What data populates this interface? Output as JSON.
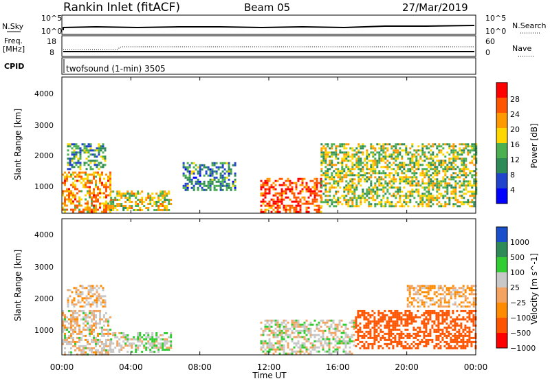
{
  "header": {
    "station": "Rankin Inlet (fitACF)",
    "beam": "Beam 05",
    "date": "27/Mar/2019"
  },
  "noise_panel": {
    "left_label": "N.Sky",
    "left_ticks": [
      "10^5",
      "10^0"
    ],
    "right_label": "N.Search",
    "right_ticks": [
      "10^5",
      "10^0"
    ]
  },
  "freq_panel": {
    "left_label_1": "Freq.",
    "left_label_2": "[MHz]",
    "left_ticks": [
      "18",
      "8"
    ],
    "right_label": "Nave",
    "right_ticks": [
      "60",
      "0"
    ]
  },
  "cpid_panel": {
    "label": "CPID",
    "value": "twofsound (1-min) 3505"
  },
  "colors": {
    "power_scale": [
      "#0000ff",
      "#2244cc",
      "#2e8b57",
      "#4caf50",
      "#ffd700",
      "#ff9900",
      "#ff5500",
      "#ff0000"
    ],
    "velocity_scale": [
      "#ff0000",
      "#ff5500",
      "#ff8c00",
      "#f4a460",
      "#c8c8c8",
      "#32cd32",
      "#2e8b57",
      "#1a4fcc"
    ]
  },
  "chart_data": [
    {
      "type": "heatmap",
      "name": "power",
      "ylabel": "Slant Range [km]",
      "yticks": [
        "4000",
        "3000",
        "2000",
        "1000"
      ],
      "ylim": [
        180,
        4500
      ],
      "xlim": [
        "00:00",
        "24:00"
      ],
      "colorbar_label": "Power [dB]",
      "colorbar_ticks": [
        "28",
        "24",
        "20",
        "16",
        "12",
        "8",
        "4"
      ],
      "colorbar_range": [
        0,
        32
      ],
      "echo_regions": [
        {
          "t_start": 0.0,
          "t_end": 2.8,
          "range_min": 200,
          "range_max": 1500,
          "power_db": 22
        },
        {
          "t_start": 0.3,
          "t_end": 2.5,
          "range_min": 1600,
          "range_max": 2400,
          "power_db": 12
        },
        {
          "t_start": 2.8,
          "t_end": 6.3,
          "range_min": 250,
          "range_max": 900,
          "power_db": 18
        },
        {
          "t_start": 7.0,
          "t_end": 10.0,
          "range_min": 900,
          "range_max": 1800,
          "power_db": 10
        },
        {
          "t_start": 11.5,
          "t_end": 15.0,
          "range_min": 200,
          "range_max": 1300,
          "power_db": 26
        },
        {
          "t_start": 15.0,
          "t_end": 24.0,
          "range_min": 400,
          "range_max": 2400,
          "power_db": 16
        }
      ]
    },
    {
      "type": "heatmap",
      "name": "velocity",
      "ylabel": "Slant Range [km]",
      "yticks": [
        "4000",
        "3000",
        "2000",
        "1000"
      ],
      "ylim": [
        180,
        4500
      ],
      "xlim": [
        "00:00",
        "24:00"
      ],
      "xticks": [
        "00:00",
        "04:00",
        "08:00",
        "12:00",
        "16:00",
        "20:00",
        "00:00"
      ],
      "xlabel": "Time UT",
      "colorbar_label": "Velocity [m s^-1]",
      "colorbar_ticks": [
        "1000",
        "500",
        "100",
        "25",
        "−25",
        "−100",
        "−500",
        "−1000"
      ],
      "echo_regions": [
        {
          "t_start": 0.0,
          "t_end": 2.8,
          "range_min": 200,
          "range_max": 1600,
          "velocity": 40
        },
        {
          "t_start": 0.3,
          "t_end": 2.5,
          "range_min": 1700,
          "range_max": 2400,
          "velocity": 0
        },
        {
          "t_start": 2.8,
          "t_end": 6.3,
          "range_min": 250,
          "range_max": 900,
          "velocity": 80
        },
        {
          "t_start": 11.5,
          "t_end": 17.0,
          "range_min": 200,
          "range_max": 1300,
          "velocity": 60
        },
        {
          "t_start": 17.0,
          "t_end": 24.0,
          "range_min": 400,
          "range_max": 1600,
          "velocity": -300
        },
        {
          "t_start": 20.0,
          "t_end": 24.0,
          "range_min": 1700,
          "range_max": 2400,
          "velocity": -20
        }
      ]
    }
  ]
}
